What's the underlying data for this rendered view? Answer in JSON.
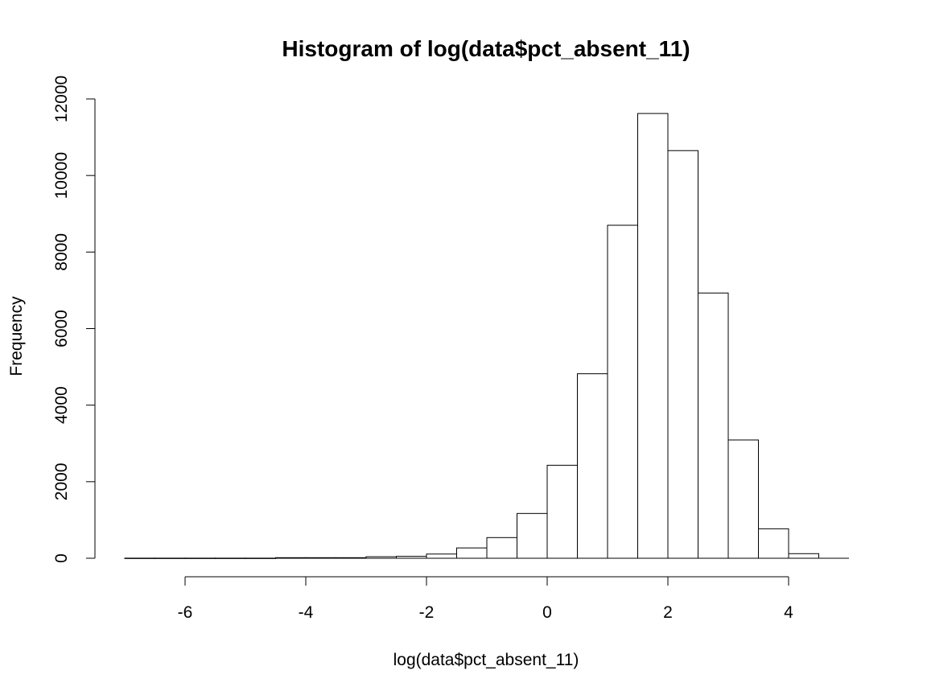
{
  "chart_data": {
    "type": "bar",
    "title": "Histogram of log(data$pct_absent_11)",
    "xlabel": "log(data$pct_absent_11)",
    "ylabel": "Frequency",
    "xlim": [
      -7,
      5
    ],
    "ylim": [
      0,
      12000
    ],
    "x_ticks": [
      -6,
      -4,
      -2,
      0,
      2,
      4
    ],
    "y_ticks": [
      0,
      2000,
      4000,
      6000,
      8000,
      10000,
      12000
    ],
    "x_tick_labels": [
      "-6",
      "-4",
      "-2",
      "0",
      "2",
      "4"
    ],
    "y_tick_labels": [
      "0",
      "2000",
      "4000",
      "6000",
      "8000",
      "10000",
      "12000"
    ],
    "bin_width": 0.5,
    "bins": [
      {
        "x0": -7.0,
        "x1": -6.5,
        "count": 3
      },
      {
        "x0": -6.5,
        "x1": -6.0,
        "count": 3
      },
      {
        "x0": -6.0,
        "x1": -5.5,
        "count": 3
      },
      {
        "x0": -5.5,
        "x1": -5.0,
        "count": 3
      },
      {
        "x0": -5.0,
        "x1": -4.5,
        "count": 3
      },
      {
        "x0": -4.5,
        "x1": -4.0,
        "count": 15
      },
      {
        "x0": -4.0,
        "x1": -3.5,
        "count": 15
      },
      {
        "x0": -3.5,
        "x1": -3.0,
        "count": 15
      },
      {
        "x0": -3.0,
        "x1": -2.5,
        "count": 40
      },
      {
        "x0": -2.5,
        "x1": -2.0,
        "count": 50
      },
      {
        "x0": -2.0,
        "x1": -1.5,
        "count": 110
      },
      {
        "x0": -1.5,
        "x1": -1.0,
        "count": 270
      },
      {
        "x0": -1.0,
        "x1": -0.5,
        "count": 540
      },
      {
        "x0": -0.5,
        "x1": 0.0,
        "count": 1170
      },
      {
        "x0": 0.0,
        "x1": 0.5,
        "count": 2430
      },
      {
        "x0": 0.5,
        "x1": 1.0,
        "count": 4820
      },
      {
        "x0": 1.0,
        "x1": 1.5,
        "count": 8700
      },
      {
        "x0": 1.5,
        "x1": 2.0,
        "count": 11620
      },
      {
        "x0": 2.0,
        "x1": 2.5,
        "count": 10650
      },
      {
        "x0": 2.5,
        "x1": 3.0,
        "count": 6930
      },
      {
        "x0": 3.0,
        "x1": 3.5,
        "count": 3090
      },
      {
        "x0": 3.5,
        "x1": 4.0,
        "count": 770
      },
      {
        "x0": 4.0,
        "x1": 4.5,
        "count": 120
      }
    ],
    "grid": false,
    "colors": {
      "bar_fill": "#ffffff",
      "bar_stroke": "#000000",
      "background": "#ffffff"
    }
  }
}
